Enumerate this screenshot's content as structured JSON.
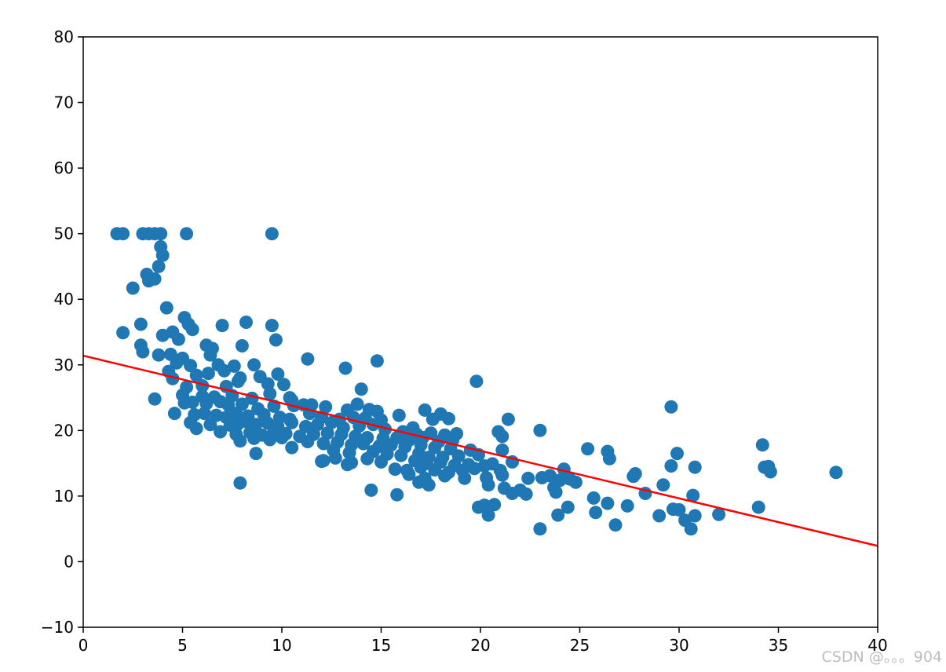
{
  "watermark": "CSDN @。。。904",
  "chart_data": {
    "type": "scatter",
    "title": "",
    "xlabel": "",
    "ylabel": "",
    "xlim": [
      0,
      40
    ],
    "ylim": [
      -10,
      80
    ],
    "xticks": [
      0,
      5,
      10,
      15,
      20,
      25,
      30,
      35,
      40
    ],
    "xtick_labels": [
      "0",
      "5",
      "10",
      "15",
      "20",
      "25",
      "30",
      "35",
      "40"
    ],
    "yticks": [
      -10,
      0,
      10,
      20,
      30,
      40,
      50,
      60,
      70,
      80
    ],
    "ytick_labels": [
      "−10",
      "0",
      "10",
      "20",
      "30",
      "40",
      "50",
      "60",
      "70",
      "80"
    ],
    "grid": false,
    "legend": false,
    "colors": {
      "points": "#1f77b4",
      "fit_line": "#ff0000",
      "axes": "#000000"
    },
    "series": [
      {
        "type": "scatter",
        "points": [
          [
            1.7,
            50
          ],
          [
            2.0,
            50
          ],
          [
            3.0,
            50
          ],
          [
            3.3,
            50
          ],
          [
            3.6,
            50
          ],
          [
            3.9,
            50
          ],
          [
            5.2,
            50
          ],
          [
            9.5,
            50
          ],
          [
            3.9,
            48
          ],
          [
            4.0,
            46.7
          ],
          [
            3.8,
            45
          ],
          [
            3.2,
            43.8
          ],
          [
            3.6,
            43.1
          ],
          [
            3.3,
            42.8
          ],
          [
            2.5,
            41.7
          ],
          [
            4.2,
            38.7
          ],
          [
            5.1,
            37.2
          ],
          [
            5.3,
            36.2
          ],
          [
            7.0,
            36.0
          ],
          [
            8.2,
            36.5
          ],
          [
            9.5,
            36.0
          ],
          [
            2.9,
            36.2
          ],
          [
            5.5,
            35.4
          ],
          [
            4.5,
            35.0
          ],
          [
            9.7,
            33.8
          ],
          [
            2.0,
            34.9
          ],
          [
            4.0,
            34.5
          ],
          [
            4.8,
            33.9
          ],
          [
            6.2,
            33.0
          ],
          [
            6.5,
            32.5
          ],
          [
            8.0,
            32.9
          ],
          [
            2.9,
            33.0
          ],
          [
            3.8,
            31.5
          ],
          [
            4.4,
            31.6
          ],
          [
            5.0,
            31.0
          ],
          [
            6.4,
            31.5
          ],
          [
            11.3,
            30.9
          ],
          [
            14.8,
            30.6
          ],
          [
            13.2,
            29.5
          ],
          [
            19.8,
            27.5
          ],
          [
            3.0,
            32.0
          ],
          [
            4.7,
            30.3
          ],
          [
            5.4,
            29.9
          ],
          [
            6.8,
            30.0
          ],
          [
            7.6,
            29.8
          ],
          [
            8.6,
            30.0
          ],
          [
            9.8,
            28.6
          ],
          [
            4.3,
            29.0
          ],
          [
            5.7,
            28.4
          ],
          [
            6.3,
            28.7
          ],
          [
            7.1,
            29.1
          ],
          [
            7.9,
            28.0
          ],
          [
            8.9,
            28.2
          ],
          [
            10.1,
            27.0
          ],
          [
            4.5,
            27.9
          ],
          [
            5.2,
            26.6
          ],
          [
            6.0,
            26.8
          ],
          [
            7.2,
            26.7
          ],
          [
            7.8,
            27.5
          ],
          [
            9.3,
            27.1
          ],
          [
            10.4,
            25.0
          ],
          [
            14.0,
            26.3
          ],
          [
            5.0,
            25.4
          ],
          [
            6.0,
            25.2
          ],
          [
            6.6,
            25.1
          ],
          [
            7.5,
            25.3
          ],
          [
            8.5,
            24.9
          ],
          [
            9.4,
            25.6
          ],
          [
            10.5,
            24.6
          ],
          [
            11.1,
            23.9
          ],
          [
            3.6,
            24.8
          ],
          [
            5.1,
            24.2
          ],
          [
            5.5,
            24.3
          ],
          [
            6.2,
            24.1
          ],
          [
            6.9,
            24.4
          ],
          [
            7.3,
            23.9
          ],
          [
            8.0,
            24.0
          ],
          [
            8.8,
            23.3
          ],
          [
            9.6,
            23.7
          ],
          [
            10.6,
            23.8
          ],
          [
            11.5,
            23.9
          ],
          [
            12.2,
            23.6
          ],
          [
            13.3,
            23.1
          ],
          [
            13.8,
            24.0
          ],
          [
            14.4,
            23.2
          ],
          [
            14.8,
            22.9
          ],
          [
            17.2,
            23.1
          ],
          [
            18.0,
            22.5
          ],
          [
            4.6,
            22.6
          ],
          [
            5.6,
            22.4
          ],
          [
            6.1,
            22.6
          ],
          [
            6.7,
            22.3
          ],
          [
            7.2,
            22.0
          ],
          [
            7.7,
            22.6
          ],
          [
            8.3,
            22.2
          ],
          [
            9.1,
            22.4
          ],
          [
            9.9,
            22.0
          ],
          [
            10.4,
            21.7
          ],
          [
            11.4,
            22.6
          ],
          [
            12.0,
            22.0
          ],
          [
            12.9,
            21.7
          ],
          [
            13.6,
            22.0
          ],
          [
            14.2,
            21.9
          ],
          [
            15.0,
            21.6
          ],
          [
            15.9,
            22.3
          ],
          [
            16.6,
            20.4
          ],
          [
            17.6,
            21.7
          ],
          [
            18.4,
            21.8
          ],
          [
            21.4,
            21.7
          ],
          [
            5.4,
            21.2
          ],
          [
            6.4,
            20.9
          ],
          [
            7.4,
            20.8
          ],
          [
            7.8,
            21.0
          ],
          [
            8.2,
            21.4
          ],
          [
            8.7,
            20.9
          ],
          [
            9.3,
            21.1
          ],
          [
            9.8,
            20.6
          ],
          [
            10.5,
            21.2
          ],
          [
            11.2,
            20.6
          ],
          [
            11.8,
            20.9
          ],
          [
            12.5,
            21.2
          ],
          [
            13.1,
            20.4
          ],
          [
            13.9,
            20.7
          ],
          [
            14.6,
            20.9
          ],
          [
            15.2,
            20.2
          ],
          [
            16.1,
            19.8
          ],
          [
            16.8,
            19.4
          ],
          [
            17.5,
            19.6
          ],
          [
            18.2,
            19.3
          ],
          [
            18.8,
            19.5
          ],
          [
            20.9,
            19.8
          ],
          [
            23.0,
            20.0
          ],
          [
            5.7,
            20.3
          ],
          [
            6.9,
            19.8
          ],
          [
            7.7,
            19.4
          ],
          [
            8.4,
            19.7
          ],
          [
            9.0,
            19.3
          ],
          [
            9.6,
            19.8
          ],
          [
            10.2,
            19.5
          ],
          [
            10.9,
            19.1
          ],
          [
            11.6,
            19.4
          ],
          [
            12.3,
            19.6
          ],
          [
            13.0,
            19.4
          ],
          [
            13.7,
            19.1
          ],
          [
            14.3,
            18.9
          ],
          [
            15.1,
            18.8
          ],
          [
            15.8,
            18.9
          ],
          [
            16.4,
            18.5
          ],
          [
            17.1,
            18.9
          ],
          [
            17.9,
            18.3
          ],
          [
            18.6,
            18.5
          ],
          [
            21.1,
            19.1
          ],
          [
            7.9,
            18.4
          ],
          [
            8.6,
            18.8
          ],
          [
            9.4,
            18.6
          ],
          [
            10.0,
            18.9
          ],
          [
            11.3,
            18.3
          ],
          [
            12.1,
            18.0
          ],
          [
            12.8,
            18.2
          ],
          [
            13.5,
            17.8
          ],
          [
            14.1,
            18.0
          ],
          [
            14.9,
            17.6
          ],
          [
            15.5,
            17.8
          ],
          [
            16.2,
            17.5
          ],
          [
            17.0,
            17.8
          ],
          [
            17.7,
            17.4
          ],
          [
            18.5,
            17.2
          ],
          [
            19.5,
            17.0
          ],
          [
            21.1,
            17.0
          ],
          [
            25.4,
            17.2
          ],
          [
            26.4,
            16.8
          ],
          [
            10.5,
            17.4
          ],
          [
            12.6,
            17.0
          ],
          [
            13.4,
            16.6
          ],
          [
            14.6,
            16.8
          ],
          [
            15.3,
            16.4
          ],
          [
            16.0,
            16.2
          ],
          [
            16.9,
            16.5
          ],
          [
            17.4,
            15.9
          ],
          [
            18.1,
            15.9
          ],
          [
            18.9,
            16.1
          ],
          [
            19.9,
            16.3
          ],
          [
            26.5,
            15.7
          ],
          [
            29.9,
            16.5
          ],
          [
            8.7,
            16.5
          ],
          [
            12.1,
            15.4
          ],
          [
            12.7,
            15.8
          ],
          [
            13.5,
            15.1
          ],
          [
            14.3,
            15.7
          ],
          [
            15.0,
            15.2
          ],
          [
            16.7,
            15.4
          ],
          [
            17.3,
            15.0
          ],
          [
            18.0,
            15.2
          ],
          [
            18.7,
            14.7
          ],
          [
            19.4,
            14.8
          ],
          [
            20.2,
            14.6
          ],
          [
            20.6,
            14.9
          ],
          [
            21.6,
            15.2
          ],
          [
            12.0,
            15.3
          ],
          [
            13.3,
            14.8
          ],
          [
            15.7,
            14.1
          ],
          [
            16.3,
            13.9
          ],
          [
            17.0,
            14.4
          ],
          [
            17.7,
            14.0
          ],
          [
            18.4,
            13.6
          ],
          [
            19.1,
            13.9
          ],
          [
            19.7,
            14.2
          ],
          [
            21.0,
            13.9
          ],
          [
            24.2,
            14.1
          ],
          [
            27.8,
            13.4
          ],
          [
            29.6,
            14.6
          ],
          [
            30.8,
            14.4
          ],
          [
            34.3,
            14.4
          ],
          [
            34.5,
            14.5
          ],
          [
            16.4,
            13.3
          ],
          [
            17.2,
            12.7
          ],
          [
            18.2,
            13.1
          ],
          [
            19.2,
            12.7
          ],
          [
            20.3,
            12.8
          ],
          [
            21.1,
            13.2
          ],
          [
            22.4,
            12.7
          ],
          [
            23.1,
            12.8
          ],
          [
            23.5,
            13.1
          ],
          [
            24.0,
            12.4
          ],
          [
            24.5,
            12.6
          ],
          [
            27.7,
            13.0
          ],
          [
            34.6,
            13.7
          ],
          [
            37.9,
            13.6
          ],
          [
            34.2,
            17.8
          ],
          [
            29.6,
            23.6
          ],
          [
            16.9,
            12.1
          ],
          [
            17.4,
            11.7
          ],
          [
            20.4,
            11.7
          ],
          [
            21.2,
            11.2
          ],
          [
            22.0,
            10.9
          ],
          [
            23.7,
            11.3
          ],
          [
            24.8,
            12.1
          ],
          [
            29.2,
            11.7
          ],
          [
            23.8,
            10.6
          ],
          [
            21.6,
            10.4
          ],
          [
            22.3,
            10.3
          ],
          [
            28.3,
            10.4
          ],
          [
            30.7,
            10.1
          ],
          [
            14.5,
            10.9
          ],
          [
            15.8,
            10.2
          ],
          [
            25.7,
            9.7
          ],
          [
            26.4,
            8.9
          ],
          [
            27.4,
            8.5
          ],
          [
            19.9,
            8.3
          ],
          [
            20.2,
            8.6
          ],
          [
            20.7,
            8.7
          ],
          [
            24.4,
            8.3
          ],
          [
            29.7,
            8.0
          ],
          [
            30.0,
            7.9
          ],
          [
            34.0,
            8.3
          ],
          [
            32.0,
            7.2
          ],
          [
            20.4,
            7.1
          ],
          [
            23.9,
            7.1
          ],
          [
            25.8,
            7.5
          ],
          [
            29.0,
            7.0
          ],
          [
            30.8,
            7.0
          ],
          [
            30.3,
            6.3
          ],
          [
            26.8,
            5.6
          ],
          [
            23.0,
            5.0
          ],
          [
            30.6,
            5.0
          ],
          [
            7.9,
            12.0
          ]
        ]
      },
      {
        "type": "line",
        "points": [
          [
            0,
            31.4
          ],
          [
            40,
            2.4
          ]
        ]
      }
    ]
  }
}
